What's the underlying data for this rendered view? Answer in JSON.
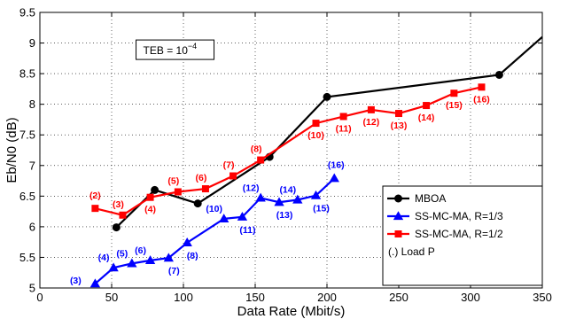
{
  "chart_data": {
    "type": "line",
    "xlabel": "Data Rate (Mbit/s)",
    "ylabel": "Eb/N0 (dB)",
    "xlim": [
      0,
      350
    ],
    "ylim": [
      5,
      9.5
    ],
    "xticks": [
      "0",
      "50",
      "100",
      "150",
      "200",
      "250",
      "300",
      "350"
    ],
    "yticks": [
      "5",
      "5.5",
      "6",
      "6.5",
      "7",
      "7.5",
      "8",
      "8.5",
      "9",
      "9.5"
    ],
    "grid": true,
    "legend_position": "bottom-right",
    "annotation": {
      "prefix": "TEB = 10",
      "exponent": "−4"
    },
    "series": [
      {
        "name": "MBOA",
        "color": "#000000",
        "marker": "circle",
        "x": [
          53.3,
          80,
          110,
          160,
          200,
          320,
          350
        ],
        "y": [
          5.99,
          6.6,
          6.38,
          7.14,
          8.12,
          8.48,
          9.1
        ],
        "markers": [
          0,
          1,
          2,
          3,
          4,
          5
        ]
      },
      {
        "name": "SS-MC-MA, R=1/3",
        "color": "#0000ff",
        "marker": "triangle",
        "x": [
          38.5,
          51.3,
          64.1,
          76.9,
          89.7,
          102.6,
          128.2,
          141,
          153.8,
          166.7,
          179.5,
          192.3,
          205.1
        ],
        "y": [
          5.07,
          5.33,
          5.4,
          5.45,
          5.49,
          5.74,
          6.13,
          6.16,
          6.47,
          6.4,
          6.44,
          6.51,
          6.79
        ],
        "labels": [
          "(3)",
          "(4)",
          "(5)",
          "(6)",
          "(7)",
          "(8)",
          "(10)",
          "(11)",
          "(12)",
          "(13)",
          "(14)",
          "(15)",
          "(16)"
        ]
      },
      {
        "name": "SS-MC-MA, R=1/2",
        "color": "#ff0000",
        "marker": "square",
        "x": [
          38.5,
          57.7,
          76.9,
          96.2,
          115.4,
          134.6,
          153.8,
          192.3,
          211.5,
          230.8,
          250,
          269.2,
          288.5,
          307.7
        ],
        "y": [
          6.3,
          6.19,
          6.48,
          6.57,
          6.62,
          6.83,
          7.09,
          7.69,
          7.8,
          7.91,
          7.85,
          7.98,
          8.18,
          8.28
        ],
        "labels": [
          "(2)",
          "(3)",
          "(4)",
          "(5)",
          "(6)",
          "(7)",
          "(8)",
          "(10)",
          "(11)",
          "(12)",
          "(13)",
          "(14)",
          "(15)",
          "(16)"
        ]
      }
    ],
    "legend_extra": "(.) Load P"
  }
}
